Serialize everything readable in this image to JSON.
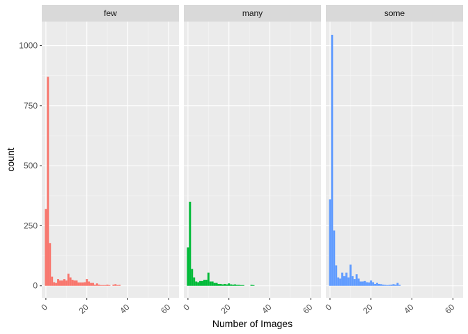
{
  "chart_data": {
    "type": "bar",
    "xlabel": "Number of Images",
    "ylabel": "count",
    "xlim": [
      -2,
      65
    ],
    "ylim": [
      -50,
      1100
    ],
    "x_ticks": [
      0,
      20,
      40,
      60
    ],
    "y_ticks": [
      0,
      250,
      500,
      750,
      1000
    ],
    "bin_width": 1,
    "grid": true,
    "legend": "none",
    "panels": [
      {
        "name": "few",
        "color": "#F8766D",
        "bins": [
          [
            0,
            320
          ],
          [
            1,
            870
          ],
          [
            2,
            178
          ],
          [
            3,
            38
          ],
          [
            4,
            15
          ],
          [
            5,
            12
          ],
          [
            6,
            28
          ],
          [
            7,
            22
          ],
          [
            8,
            22
          ],
          [
            9,
            28
          ],
          [
            10,
            22
          ],
          [
            11,
            50
          ],
          [
            12,
            35
          ],
          [
            13,
            25
          ],
          [
            14,
            22
          ],
          [
            15,
            22
          ],
          [
            16,
            14
          ],
          [
            17,
            14
          ],
          [
            18,
            14
          ],
          [
            19,
            15
          ],
          [
            20,
            28
          ],
          [
            21,
            18
          ],
          [
            22,
            12
          ],
          [
            23,
            12
          ],
          [
            24,
            5
          ],
          [
            25,
            10
          ],
          [
            26,
            5
          ],
          [
            27,
            3
          ],
          [
            28,
            3
          ],
          [
            29,
            3
          ],
          [
            30,
            5
          ],
          [
            31,
            3
          ],
          [
            33,
            5
          ],
          [
            34,
            7
          ],
          [
            35,
            3
          ],
          [
            36,
            4
          ]
        ]
      },
      {
        "name": "many",
        "color": "#00BA38",
        "bins": [
          [
            0,
            160
          ],
          [
            1,
            350
          ],
          [
            2,
            70
          ],
          [
            3,
            35
          ],
          [
            4,
            18
          ],
          [
            5,
            15
          ],
          [
            6,
            20
          ],
          [
            7,
            20
          ],
          [
            8,
            25
          ],
          [
            9,
            25
          ],
          [
            10,
            55
          ],
          [
            11,
            18
          ],
          [
            12,
            18
          ],
          [
            13,
            12
          ],
          [
            14,
            12
          ],
          [
            15,
            8
          ],
          [
            16,
            8
          ],
          [
            17,
            6
          ],
          [
            18,
            8
          ],
          [
            19,
            6
          ],
          [
            20,
            10
          ],
          [
            21,
            6
          ],
          [
            22,
            5
          ],
          [
            23,
            6
          ],
          [
            24,
            4
          ],
          [
            25,
            4
          ],
          [
            26,
            3
          ],
          [
            27,
            3
          ],
          [
            31,
            4
          ],
          [
            32,
            3
          ]
        ]
      },
      {
        "name": "some",
        "color": "#619CFF",
        "bins": [
          [
            0,
            360
          ],
          [
            1,
            1045
          ],
          [
            2,
            230
          ],
          [
            3,
            85
          ],
          [
            4,
            35
          ],
          [
            5,
            30
          ],
          [
            6,
            55
          ],
          [
            7,
            40
          ],
          [
            8,
            55
          ],
          [
            9,
            35
          ],
          [
            10,
            88
          ],
          [
            11,
            40
          ],
          [
            12,
            28
          ],
          [
            13,
            48
          ],
          [
            14,
            30
          ],
          [
            15,
            18
          ],
          [
            16,
            18
          ],
          [
            17,
            20
          ],
          [
            18,
            15
          ],
          [
            19,
            14
          ],
          [
            20,
            22
          ],
          [
            21,
            15
          ],
          [
            22,
            8
          ],
          [
            23,
            12
          ],
          [
            24,
            8
          ],
          [
            25,
            7
          ],
          [
            26,
            5
          ],
          [
            27,
            4
          ],
          [
            28,
            3
          ],
          [
            29,
            4
          ],
          [
            30,
            5
          ],
          [
            31,
            7
          ],
          [
            32,
            5
          ],
          [
            33,
            12
          ],
          [
            34,
            4
          ]
        ]
      }
    ]
  }
}
